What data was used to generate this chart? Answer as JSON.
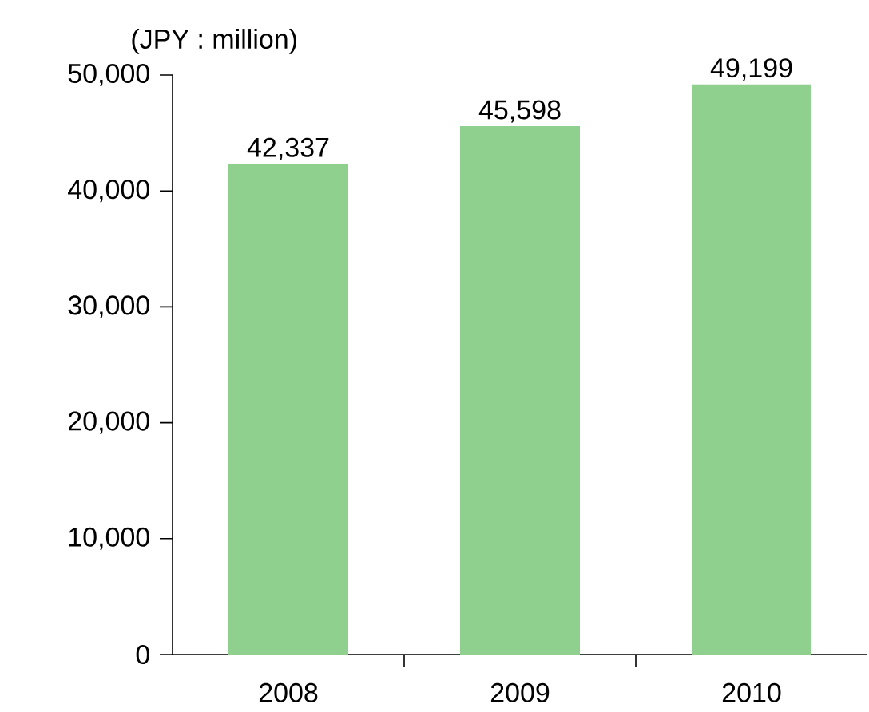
{
  "chart_data": {
    "type": "bar",
    "ylabel": "(JPY : million)",
    "categories": [
      "2008",
      "2009",
      "2010"
    ],
    "values": [
      42337,
      45598,
      49199
    ],
    "value_labels": [
      "42,337",
      "45,598",
      "49,199"
    ],
    "color": "#8fd08f",
    "ylim": [
      0,
      50000
    ],
    "yticks": [
      0,
      {
        "value": 10000,
        "label": "10,000"
      },
      {
        "value": 20000,
        "label": "20,000"
      },
      {
        "value": 30000,
        "label": "30,000"
      },
      {
        "value": 40000,
        "label": "40,000"
      },
      {
        "value": 50000,
        "label": "50,000"
      }
    ],
    "grid": false
  }
}
